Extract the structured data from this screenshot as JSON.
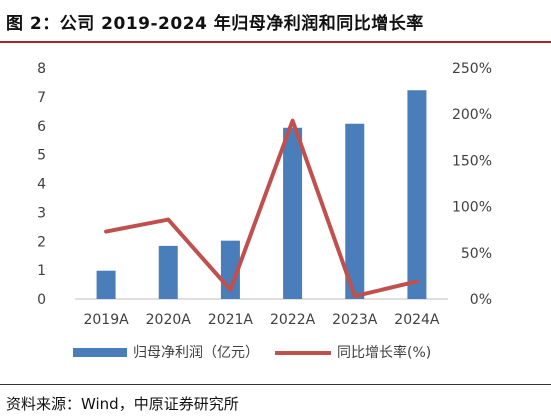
{
  "title": "图 2：公司 2019-2024 年归母净利润和同比增长率",
  "source": "资料来源：Wind，中原证券研究所",
  "chart_data": {
    "type": "bar+line",
    "categories": [
      "2019A",
      "2020A",
      "2021A",
      "2022A",
      "2023A",
      "2024A"
    ],
    "series": [
      {
        "name": "归母净利润（亿元）",
        "type": "bar",
        "axis": "left",
        "color": "#4a7ebb",
        "values": [
          0.98,
          1.84,
          2.02,
          5.93,
          6.07,
          7.23
        ]
      },
      {
        "name": "同比增长率(%)",
        "type": "line",
        "axis": "right",
        "color": "#c0504d",
        "values": [
          73,
          86,
          10,
          193,
          3,
          19
        ]
      }
    ],
    "ylim_left": [
      0,
      8
    ],
    "yticks_left": [
      "0",
      "1",
      "2",
      "3",
      "4",
      "5",
      "6",
      "7",
      "8"
    ],
    "ylim_right": [
      0,
      250
    ],
    "yticks_right": [
      "0%",
      "50%",
      "100%",
      "150%",
      "200%",
      "250%"
    ],
    "grid": false,
    "legend_position": "bottom"
  }
}
